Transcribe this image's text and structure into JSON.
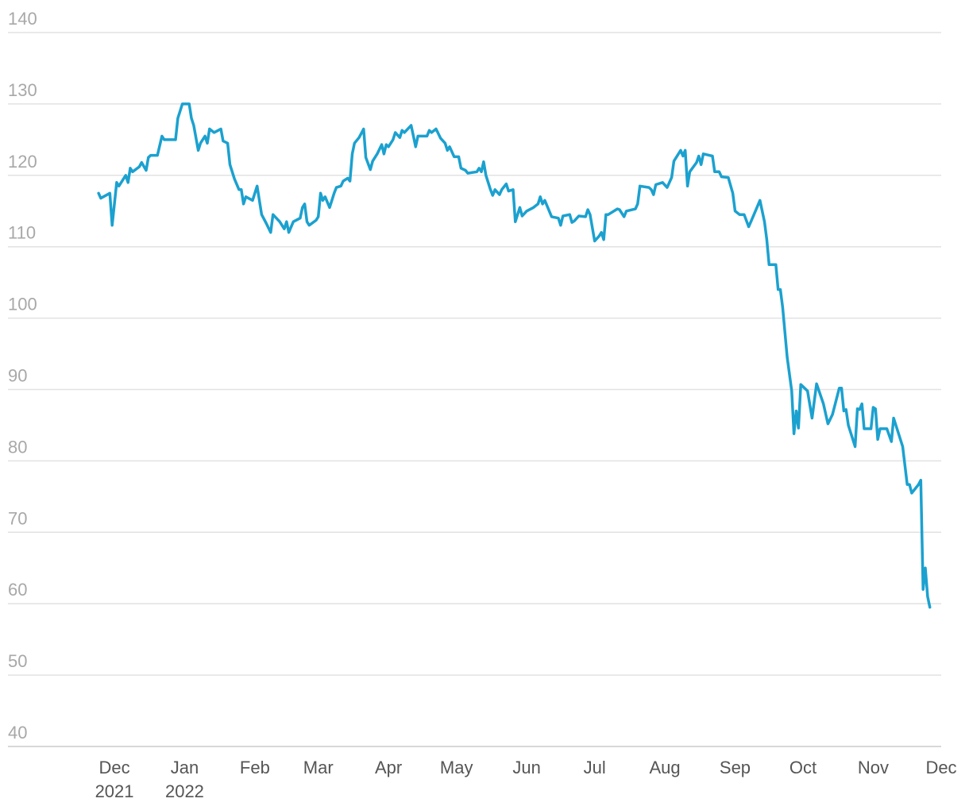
{
  "chart_data": {
    "type": "line",
    "x": [
      -7,
      -6,
      -2,
      -1,
      1,
      2,
      5,
      6,
      7,
      8,
      11,
      12,
      14,
      15,
      16,
      19,
      21,
      22,
      27,
      28,
      30,
      33,
      34,
      35,
      37,
      38,
      40,
      41,
      42,
      44,
      47,
      48,
      50,
      51,
      53,
      55,
      56,
      57,
      58,
      61,
      63,
      65,
      67,
      69,
      70,
      73,
      75,
      76,
      77,
      79,
      82,
      83,
      84,
      85,
      86,
      89,
      90,
      91,
      92,
      93,
      95,
      97,
      98,
      100,
      101,
      103,
      104,
      105,
      106,
      108,
      110,
      111,
      113,
      114,
      116,
      118,
      119,
      120,
      121,
      123,
      124,
      126,
      127,
      128,
      131,
      132,
      133,
      134,
      138,
      139,
      140,
      142,
      144,
      146,
      147,
      148,
      150,
      152,
      153,
      155,
      156,
      160,
      161,
      162,
      163,
      164,
      166,
      167,
      168,
      170,
      171,
      173,
      174,
      176,
      177,
      179,
      180,
      182,
      185,
      187,
      188,
      189,
      190,
      193,
      196,
      197,
      198,
      201,
      202,
      203,
      205,
      208,
      209,
      210,
      212,
      214,
      215,
      216,
      217,
      218,
      222,
      223,
      225,
      226,
      230,
      231,
      232,
      236,
      237,
      238,
      239,
      242,
      244,
      246,
      247,
      250,
      251,
      252,
      253,
      254,
      257,
      258,
      259,
      260,
      264,
      265,
      267,
      268,
      271,
      273,
      274,
      276,
      278,
      280,
      281,
      283,
      285,
      287,
      288,
      289,
      292,
      293,
      294,
      295,
      297,
      299,
      300,
      301,
      302,
      303,
      306,
      308,
      310,
      313,
      315,
      317,
      320,
      321,
      322,
      323,
      324,
      327,
      328,
      329,
      330,
      331,
      334,
      335,
      336,
      337,
      338,
      341,
      343,
      344,
      346,
      348,
      350,
      351,
      352,
      355,
      356,
      357,
      358,
      359,
      360
    ],
    "series": [
      {
        "color": "#1ba1cf",
        "values": [
          117.5,
          116.8,
          117.5,
          113,
          119,
          118.5,
          120,
          119,
          121,
          120.5,
          121.2,
          121.8,
          120.7,
          122.5,
          122.8,
          122.8,
          125.5,
          125,
          125,
          128,
          130,
          130,
          128,
          127,
          123.5,
          124.5,
          125.5,
          124.5,
          126.5,
          126,
          126.5,
          124.8,
          124.5,
          121.5,
          119.5,
          118,
          118,
          116,
          117,
          116.5,
          118.5,
          114.5,
          113.3,
          112,
          114.5,
          113.5,
          112.5,
          113.5,
          112,
          113.5,
          114,
          115.5,
          116,
          113.5,
          113,
          113.7,
          114.2,
          117.5,
          116.5,
          117,
          115.5,
          117.5,
          118.3,
          118.5,
          119.2,
          119.6,
          119.2,
          123,
          124.5,
          125.3,
          126.5,
          122.5,
          120.8,
          122,
          123,
          124.3,
          123,
          124.3,
          124,
          125,
          126,
          125.3,
          126.3,
          126,
          127,
          125.5,
          124,
          125.5,
          125.5,
          126.3,
          126,
          126.5,
          125.2,
          124.5,
          123.5,
          124,
          122.6,
          122.6,
          121,
          120.7,
          120.3,
          120.5,
          121,
          120.5,
          121.9,
          120,
          118,
          117.2,
          118,
          117.3,
          118,
          118.8,
          117.8,
          118,
          113.5,
          115.5,
          114.3,
          115,
          115.5,
          116,
          117,
          116,
          116.5,
          114.2,
          114,
          113,
          114.3,
          114.5,
          113.4,
          113.6,
          114.3,
          114.2,
          115.2,
          114.5,
          110.8,
          111.5,
          112,
          111,
          114.5,
          114.5,
          115.3,
          115.2,
          114.2,
          115,
          115.3,
          116,
          118.5,
          118.3,
          118,
          117.3,
          118.7,
          119,
          118.3,
          119.7,
          122,
          123.5,
          122.7,
          123.5,
          118.5,
          120.5,
          121.8,
          122.7,
          121.5,
          123,
          122.7,
          120.5,
          120.5,
          119.8,
          119.7,
          117.5,
          115,
          114.5,
          114.5,
          112.8,
          113.5,
          115,
          116.5,
          113.5,
          111,
          107.5,
          107.5,
          104,
          104,
          101.5,
          94.5,
          89.8,
          83.8,
          87,
          84.6,
          90.7,
          89.8,
          86,
          90.8,
          88,
          85.2,
          86.5,
          90.2,
          90.2,
          87,
          87.2,
          85,
          82,
          87.3,
          87.2,
          88,
          84.5,
          84.5,
          87.5,
          87.3,
          83,
          84.5,
          84.5,
          82.7,
          86,
          84,
          82,
          76.7,
          76.7,
          75.5,
          76.7,
          77.3,
          62,
          65,
          61,
          59.5
        ]
      }
    ],
    "xlim": [
      -47,
      365
    ],
    "xticks": [
      {
        "value": 0,
        "label": "Dec",
        "sublabel": "2021"
      },
      {
        "value": 31,
        "label": "Jan",
        "sublabel": "2022"
      },
      {
        "value": 62,
        "label": "Feb"
      },
      {
        "value": 90,
        "label": "Mar"
      },
      {
        "value": 121,
        "label": "Apr"
      },
      {
        "value": 151,
        "label": "May"
      },
      {
        "value": 182,
        "label": "Jun"
      },
      {
        "value": 212,
        "label": "Jul"
      },
      {
        "value": 243,
        "label": "Aug"
      },
      {
        "value": 274,
        "label": "Sep"
      },
      {
        "value": 304,
        "label": "Oct"
      },
      {
        "value": 335,
        "label": "Nov"
      },
      {
        "value": 365,
        "label": "Dec"
      }
    ],
    "ylim": [
      40,
      140
    ],
    "yticks": [
      40,
      50,
      60,
      70,
      80,
      90,
      100,
      110,
      120,
      130,
      140
    ],
    "grid": true
  }
}
